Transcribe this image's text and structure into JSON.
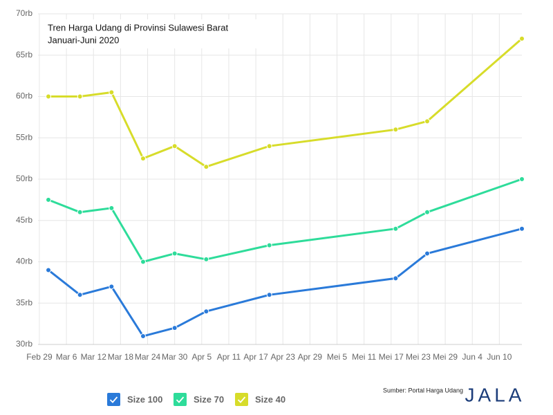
{
  "chart_data": {
    "type": "line",
    "title": "Tren Harga Udang di Provinsi Sulawesi Barat",
    "subtitle": "Januari-Juni 2020",
    "source": "Sumber: Portal Harga Udang",
    "logo": "JALA",
    "x": [
      62,
      69,
      76,
      83,
      90,
      97,
      111,
      139,
      146,
      167
    ],
    "xlim": [
      59.7,
      167
    ],
    "xticks": [
      {
        "value": 60,
        "label": "Feb 29"
      },
      {
        "value": 66,
        "label": "Mar 6"
      },
      {
        "value": 72,
        "label": "Mar 12"
      },
      {
        "value": 78,
        "label": "Mar 18"
      },
      {
        "value": 84,
        "label": "Mar 24"
      },
      {
        "value": 90,
        "label": "Mar 30"
      },
      {
        "value": 96,
        "label": "Apr 5"
      },
      {
        "value": 102,
        "label": "Apr 11"
      },
      {
        "value": 108,
        "label": "Apr 17"
      },
      {
        "value": 114,
        "label": "Apr 23"
      },
      {
        "value": 120,
        "label": "Apr 29"
      },
      {
        "value": 126,
        "label": "Mei 5"
      },
      {
        "value": 132,
        "label": "Mei 11"
      },
      {
        "value": 138,
        "label": "Mei 17"
      },
      {
        "value": 144,
        "label": "Mei 23"
      },
      {
        "value": 150,
        "label": "Mei 29"
      },
      {
        "value": 156,
        "label": "Jun 4"
      },
      {
        "value": 162,
        "label": "Jun 10"
      }
    ],
    "ylim": [
      30,
      70
    ],
    "yticks": [
      {
        "value": 30,
        "label": "30rb"
      },
      {
        "value": 35,
        "label": "35rb"
      },
      {
        "value": 40,
        "label": "40rb"
      },
      {
        "value": 45,
        "label": "45rb"
      },
      {
        "value": 50,
        "label": "50rb"
      },
      {
        "value": 55,
        "label": "55rb"
      },
      {
        "value": 60,
        "label": "60rb"
      },
      {
        "value": 65,
        "label": "65rb"
      },
      {
        "value": 70,
        "label": "70rb"
      }
    ],
    "grid": true,
    "legend": "bottom",
    "series": [
      {
        "name": "Size 100",
        "color": "#2a7ad9",
        "values": [
          39,
          36,
          37,
          31,
          32,
          34,
          36,
          38,
          41,
          44
        ]
      },
      {
        "name": "Size 70",
        "color": "#2edc9a",
        "values": [
          47.5,
          46,
          46.5,
          40,
          41,
          40.3,
          42,
          44,
          46,
          50
        ]
      },
      {
        "name": "Size 40",
        "color": "#d7dc2a",
        "values": [
          60,
          60,
          60.5,
          52.5,
          54,
          51.5,
          54,
          56,
          57,
          67
        ]
      }
    ]
  }
}
